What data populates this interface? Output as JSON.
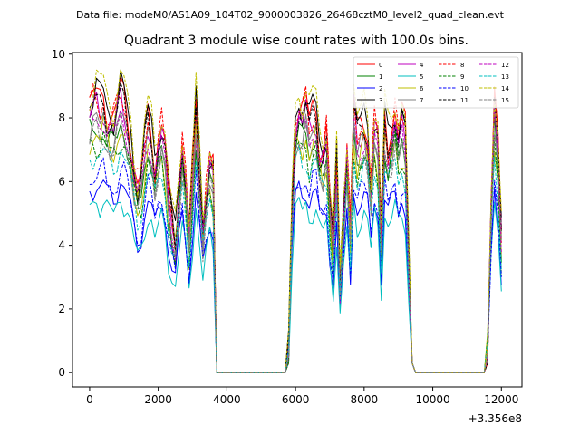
{
  "chart_data": {
    "type": "line",
    "suptitle": "Data file: modeM0/AS1A09_104T02_9000003826_26468cztM0_level2_quad_clean.evt",
    "title": "Quadrant 3 module wise count rates with 100.0s bins.",
    "xlabel": "",
    "ylabel": "",
    "x_offset_label": "+3.356e8",
    "xlim": [
      -500,
      12600
    ],
    "ylim": [
      -0.45,
      10.05
    ],
    "xticks": [
      0,
      2000,
      4000,
      6000,
      8000,
      10000,
      12000
    ],
    "xtick_labels": [
      "0",
      "2000",
      "4000",
      "6000",
      "8000",
      "10000",
      "12000"
    ],
    "yticks": [
      0,
      2,
      4,
      6,
      8,
      10
    ],
    "ytick_labels": [
      "0",
      "2",
      "4",
      "6",
      "8",
      "10"
    ],
    "x_step": 100,
    "legend_location": "top-right",
    "series": [
      {
        "name": "0",
        "color": "#ff0000",
        "dash": "solid",
        "base": 1.0
      },
      {
        "name": "1",
        "color": "#008000",
        "dash": "solid",
        "base": 0.88
      },
      {
        "name": "2",
        "color": "#0000ff",
        "dash": "solid",
        "base": 0.68
      },
      {
        "name": "3",
        "color": "#000000",
        "dash": "solid",
        "base": 1.01
      },
      {
        "name": "4",
        "color": "#bf00bf",
        "dash": "solid",
        "base": 0.95
      },
      {
        "name": "5",
        "color": "#00bfbf",
        "dash": "solid",
        "base": 0.62
      },
      {
        "name": "6",
        "color": "#bfbf00",
        "dash": "solid",
        "base": 0.87
      },
      {
        "name": "7",
        "color": "#808080",
        "dash": "solid",
        "base": 0.9
      },
      {
        "name": "8",
        "color": "#ff0000",
        "dash": "dashed",
        "base": 0.98
      },
      {
        "name": "9",
        "color": "#008000",
        "dash": "dashed",
        "base": 0.84
      },
      {
        "name": "10",
        "color": "#0000ff",
        "dash": "dashed",
        "base": 0.72
      },
      {
        "name": "11",
        "color": "#000000",
        "dash": "dashed",
        "base": 0.97
      },
      {
        "name": "12",
        "color": "#bf00bf",
        "dash": "dashed",
        "base": 0.92
      },
      {
        "name": "13",
        "color": "#00bfbf",
        "dash": "dashed",
        "base": 0.8
      },
      {
        "name": "14",
        "color": "#bfbf00",
        "dash": "dashed",
        "base": 1.05
      },
      {
        "name": "15",
        "color": "#808080",
        "dash": "dashed",
        "base": 0.86
      }
    ],
    "profile_segments": [
      {
        "x_start": 0,
        "values": [
          8.4,
          8.6,
          8.7,
          8.5,
          8.8,
          8.3,
          8.1,
          8.0,
          8.4,
          8.9,
          8.6,
          8.2,
          7.4,
          6.5,
          5.9,
          6.2,
          7.2,
          8.1,
          7.7,
          6.6,
          7.4,
          7.9,
          7.1,
          5.6,
          5.0,
          4.3,
          5.9,
          7.4,
          6.2,
          4.3,
          6.4,
          8.6,
          6.5,
          4.7,
          6.0,
          6.8,
          6.3,
          0.3
        ]
      },
      {
        "x_start": 3700,
        "values": [
          0,
          0,
          0,
          0,
          0,
          0,
          0,
          0,
          0,
          0,
          0,
          0,
          0,
          0,
          0,
          0,
          0,
          0,
          0,
          0,
          0
        ]
      },
      {
        "x_start": 5800,
        "values": [
          0.7,
          5.6,
          8.1,
          8.4,
          8.2,
          8.6,
          7.8,
          8.2,
          8.4,
          7.2,
          7.0,
          7.6,
          5.5,
          4.0,
          7.0,
          3.0,
          5.1,
          7.2,
          4.5,
          8.5,
          7.4,
          7.8,
          8.1,
          7.6,
          6.1,
          8.0,
          7.4,
          4.3,
          8.2,
          7.3,
          7.7,
          8.4,
          7.5,
          8.0,
          7.6,
          3.7,
          0.3
        ]
      },
      {
        "x_start": 9500,
        "values": [
          0,
          0,
          0,
          0,
          0,
          0,
          0,
          0,
          0,
          0,
          0,
          0,
          0,
          0,
          0,
          0,
          0,
          0,
          0,
          0,
          0
        ]
      },
      {
        "x_start": 11600,
        "values": [
          0.9,
          5.5,
          8.6,
          7.2,
          4.3
        ]
      }
    ]
  }
}
